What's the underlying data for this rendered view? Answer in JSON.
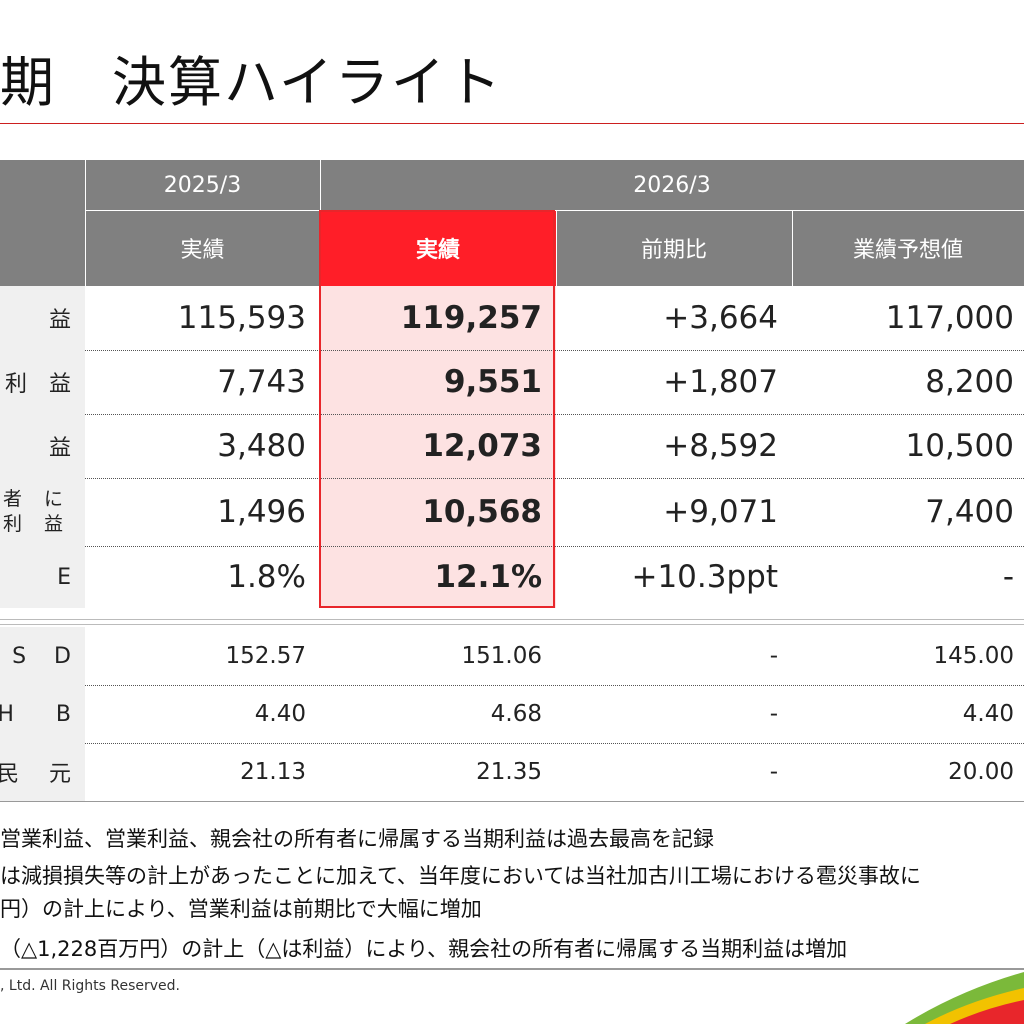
{
  "title": "期　決算ハイライト",
  "table": {
    "year_prev": "2025/3",
    "year_curr": "2026/3",
    "col_prev_actual": "実績",
    "col_curr_actual": "実績",
    "col_yoy": "前期比",
    "col_forecast": "業績予想値",
    "main_rows": [
      {
        "label_lines": [
          "益"
        ],
        "prev": "115,593",
        "curr": "119,257",
        "yoy": "+3,664",
        "forecast": "117,000"
      },
      {
        "label_lines": [
          "利　益"
        ],
        "prev": "7,743",
        "curr": "9,551",
        "yoy": "+1,807",
        "forecast": "8,200"
      },
      {
        "label_lines": [
          "益"
        ],
        "prev": "3,480",
        "curr": "12,073",
        "yoy": "+8,592",
        "forecast": "10,500"
      },
      {
        "label_lines": [
          "者 に",
          "利 益"
        ],
        "prev": "1,496",
        "curr": "10,568",
        "yoy": "+9,071",
        "forecast": "7,400"
      },
      {
        "label_lines": [
          "E"
        ],
        "prev": "1.8%",
        "curr": "12.1%",
        "yoy": "+10.3ppt",
        "forecast": "-"
      }
    ],
    "fx_rows": [
      {
        "label_lines": [
          "S",
          "D"
        ],
        "prev": "152.57",
        "curr": "151.06",
        "yoy": "-",
        "forecast": "145.00"
      },
      {
        "label_lines": [
          "H",
          "B"
        ],
        "prev": "4.40",
        "curr": "4.68",
        "yoy": "-",
        "forecast": "4.40"
      },
      {
        "label_lines": [
          "民",
          "元"
        ],
        "prev": "21.13",
        "curr": "21.35",
        "yoy": "-",
        "forecast": "20.00"
      }
    ]
  },
  "notes": [
    "営業利益、営業利益、親会社の所有者に帰属する当期利益は過去最高を記録",
    "は減損損失等の計上があったことに加えて、当年度においては当社加古川工場における雹災事故に",
    "円）の計上により、営業利益は前期比で大幅に増加",
    "（△1,228百万円）の計上（△は利益）により、親会社の所有者に帰属する当期利益は増加"
  ],
  "copyright": ", Ltd. All Rights Reserved.",
  "colors": {
    "accent_red": "#ff1e28",
    "header_gray": "#808080",
    "highlight_pink": "#fde2e2"
  }
}
